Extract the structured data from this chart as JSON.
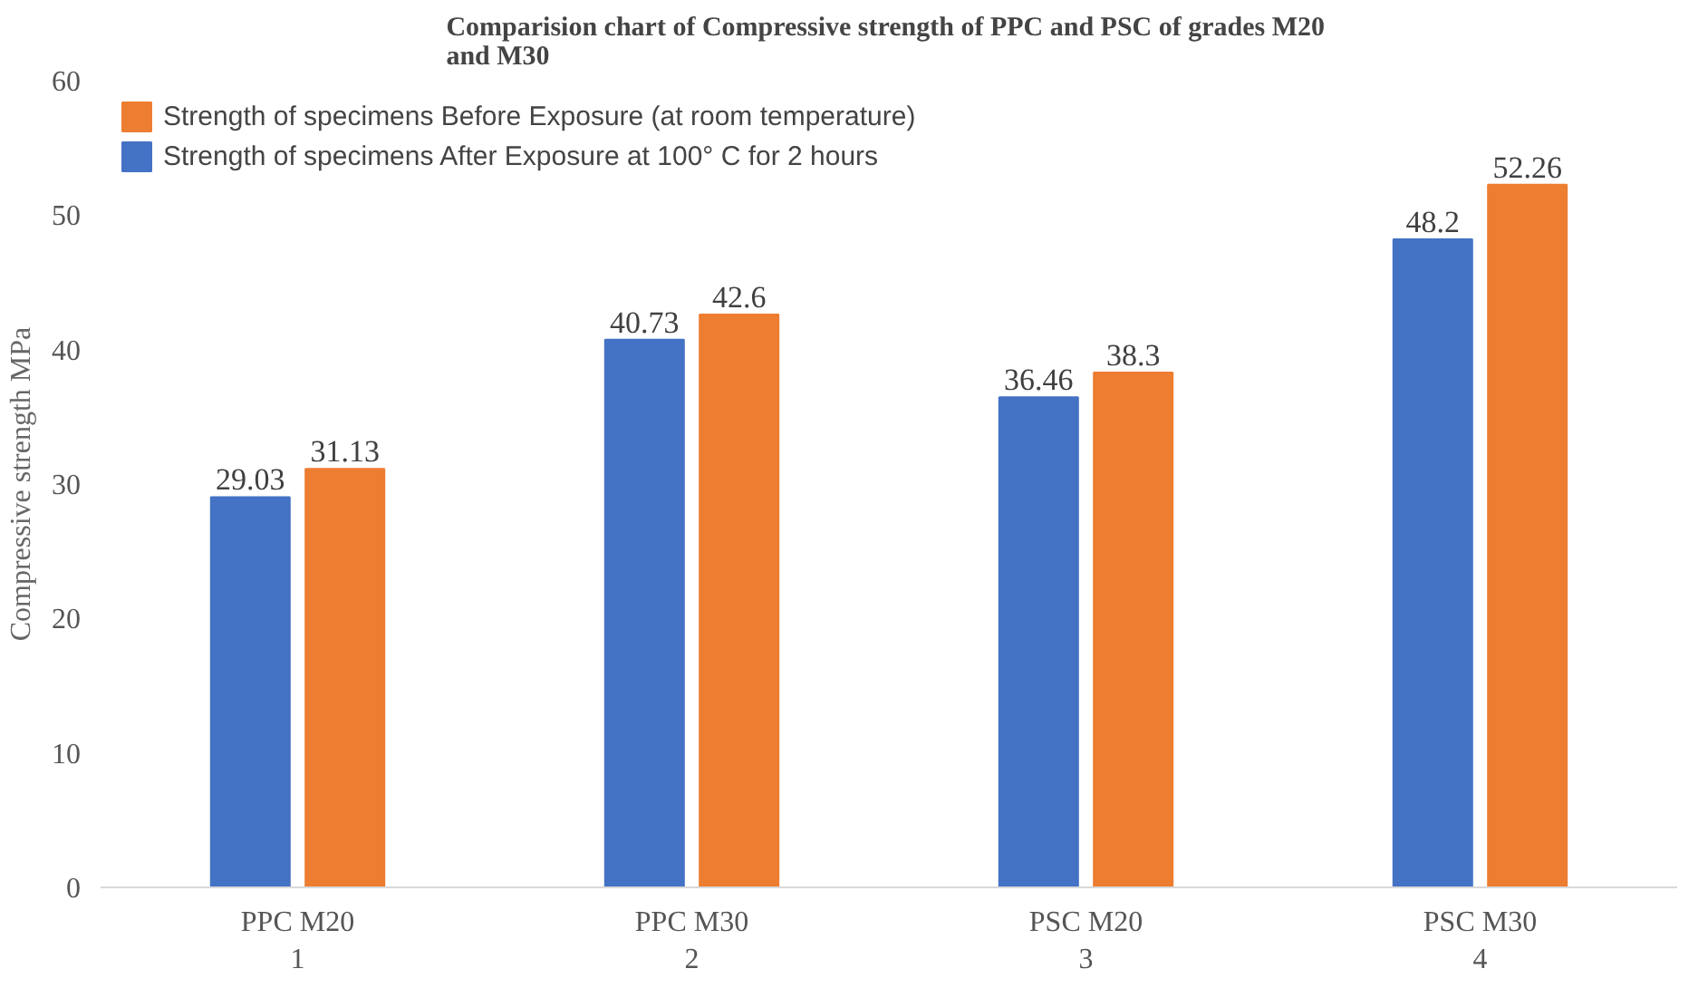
{
  "chart_data": {
    "type": "bar",
    "title": "Comparision  chart of Compressive strength of PPC and PSC of grades M20 and M30",
    "ylabel": "Compressive strength MPa",
    "categories": [
      "PPC M20\n1",
      "PPC M30\n2",
      "PSC M20\n3",
      "PSC M30\n4"
    ],
    "series": [
      {
        "name": "Strength of specimens After Exposure at 100° C for 2 hours",
        "color": "#4472c4",
        "values": [
          29.03,
          40.73,
          36.46,
          48.2
        ]
      },
      {
        "name": "Strength of specimens Before Exposure (at room temperature)",
        "color": "#ed7d31",
        "values": [
          31.13,
          42.6,
          38.3,
          52.26
        ]
      }
    ],
    "ylim": [
      0,
      60
    ],
    "yticks": [
      0,
      10,
      20,
      30,
      40,
      50,
      60
    ],
    "grid": false,
    "legend": "top left",
    "data_labels": true
  }
}
